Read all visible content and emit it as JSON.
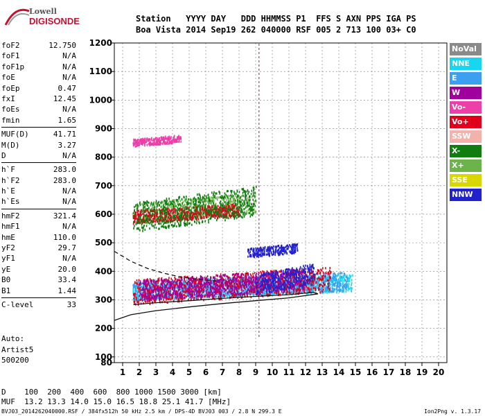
{
  "logo": {
    "line1": "Lowell",
    "line2": "DIGISONDE"
  },
  "header": {
    "row1": "Station   YYYY DAY   DDD HHMMSS P1  FFS S AXN PPS IGA PS",
    "row2": "Boa Vista 2014 Sep19 262 040000 RSF 005 2 713 100 03+ C0"
  },
  "params": [
    {
      "group": [
        {
          "label": "foF2",
          "value": "12.750"
        },
        {
          "label": "foF1",
          "value": "N/A"
        },
        {
          "label": "foF1p",
          "value": "N/A"
        },
        {
          "label": "foE",
          "value": "N/A"
        },
        {
          "label": "foEp",
          "value": "0.47"
        },
        {
          "label": "fxI",
          "value": "12.45"
        },
        {
          "label": "foEs",
          "value": "N/A"
        },
        {
          "label": "fmin",
          "value": "1.65"
        }
      ]
    },
    {
      "group": [
        {
          "label": "MUF(D)",
          "value": "41.71"
        },
        {
          "label": "M(D)",
          "value": "3.27"
        },
        {
          "label": "D",
          "value": "N/A"
        }
      ]
    },
    {
      "group": [
        {
          "label": "h`F",
          "value": "283.0"
        },
        {
          "label": "h`F2",
          "value": "283.0"
        },
        {
          "label": "h`E",
          "value": "N/A"
        },
        {
          "label": "h`Es",
          "value": "N/A"
        }
      ]
    },
    {
      "group": [
        {
          "label": "hmF2",
          "value": "321.4"
        },
        {
          "label": "hmF1",
          "value": "N/A"
        },
        {
          "label": "hmE",
          "value": "110.0"
        },
        {
          "label": "yF2",
          "value": "29.7"
        },
        {
          "label": "yF1",
          "value": "N/A"
        },
        {
          "label": "yE",
          "value": "20.0"
        },
        {
          "label": "B0",
          "value": "33.4"
        },
        {
          "label": "B1",
          "value": "1.44"
        }
      ]
    },
    {
      "group": [
        {
          "label": "C-level",
          "value": "33"
        }
      ]
    }
  ],
  "auto": [
    "Auto:",
    "Artist5",
    "500200"
  ],
  "legend": [
    {
      "label": "NoVal",
      "color": "#8a8a8a"
    },
    {
      "label": "NNE",
      "color": "#19d6f0"
    },
    {
      "label": "E",
      "color": "#3c9ff0"
    },
    {
      "label": "W",
      "color": "#a0009e"
    },
    {
      "label": "Vo-",
      "color": "#ec3fa8"
    },
    {
      "label": "Vo+",
      "color": "#e0001b"
    },
    {
      "label": "SSW",
      "color": "#f2b2ab"
    },
    {
      "label": "X-",
      "color": "#0f7d0f"
    },
    {
      "label": "X+",
      "color": "#6cb34c"
    },
    {
      "label": "SSE",
      "color": "#d8d800"
    },
    {
      "label": "NNW",
      "color": "#2222cc"
    }
  ],
  "bottom": {
    "row1": "D    100  200  400  600  800 1000 1500 3000 [km]",
    "row2": "MUF  13.2 13.3 14.0 15.0 16.5 18.8 25.1 41.7 [MHz]"
  },
  "footer": {
    "left": "BVJ03_2014262040000.RSF / 384fx512h 50 kHz 2.5 km / DPS-4D BVJ03 003 / 2.8 N 299.3 E",
    "right": "Ion2Png v. 1.3.17"
  },
  "chart_data": {
    "type": "scatter",
    "xlim": [
      0.5,
      20.5
    ],
    "ylim": [
      80,
      1200
    ],
    "x_ticks": [
      1,
      2,
      3,
      4,
      5,
      6,
      7,
      8,
      9,
      10,
      11,
      12,
      13,
      14,
      15,
      16,
      17,
      18,
      19,
      20
    ],
    "y_ticks": [
      80,
      100,
      200,
      300,
      400,
      500,
      600,
      700,
      800,
      900,
      1000,
      1100,
      1200
    ],
    "grid": true,
    "trace_clusters": [
      {
        "name": "NNE",
        "color": "#19d6f0",
        "x": [
          1.6,
          14.8
        ],
        "y": [
          300,
          390
        ]
      },
      {
        "name": "E",
        "color": "#3c9ff0",
        "x": [
          1.6,
          14.5
        ],
        "y": [
          300,
          400
        ]
      },
      {
        "name": "Vo+",
        "color": "#e0001b",
        "x": [
          1.6,
          13.5
        ],
        "y": [
          285,
          420
        ]
      },
      {
        "name": "W",
        "color": "#a0009e",
        "x": [
          2.0,
          12.0
        ],
        "y": [
          300,
          410
        ]
      },
      {
        "name": "NNW",
        "color": "#2222cc",
        "x": [
          8.5,
          11.5
        ],
        "y": [
          450,
          500
        ]
      },
      {
        "name": "NNW",
        "color": "#2222cc",
        "x": [
          9.0,
          12.5
        ],
        "y": [
          320,
          430
        ]
      },
      {
        "name": "X+",
        "color": "#6cb34c",
        "x": [
          2.0,
          9.0
        ],
        "y": [
          570,
          680
        ]
      },
      {
        "name": "Vo+",
        "color": "#e0001b",
        "x": [
          1.6,
          8.0
        ],
        "y": [
          570,
          640
        ]
      },
      {
        "name": "Vo-",
        "color": "#ec3fa8",
        "x": [
          1.6,
          4.5
        ],
        "y": [
          840,
          880
        ]
      },
      {
        "name": "X-",
        "color": "#0f7d0f",
        "x": [
          1.6,
          9.0
        ],
        "y": [
          540,
          700
        ]
      }
    ],
    "curves": [
      {
        "name": "profile",
        "style": "solid",
        "x": [
          0.5,
          1.5,
          3.0,
          5.0,
          7.0,
          9.0,
          11.0,
          12.75
        ],
        "y": [
          228,
          248,
          262,
          275,
          287,
          297,
          307,
          321
        ]
      },
      {
        "name": "trace",
        "style": "solid",
        "x": [
          1.65,
          3.0,
          5.0,
          7.0,
          9.0,
          11.0,
          12.45,
          12.75
        ],
        "y": [
          283,
          290,
          297,
          305,
          312,
          318,
          326,
          321
        ]
      },
      {
        "name": "x-trace",
        "style": "dashed",
        "x": [
          0.5,
          1.5,
          2.5,
          3.5,
          4.5,
          5.5,
          6.8
        ],
        "y": [
          470,
          435,
          410,
          393,
          380,
          372,
          365
        ]
      }
    ],
    "vertical_line": {
      "x": 9.2,
      "y": [
        170,
        1200
      ]
    }
  }
}
